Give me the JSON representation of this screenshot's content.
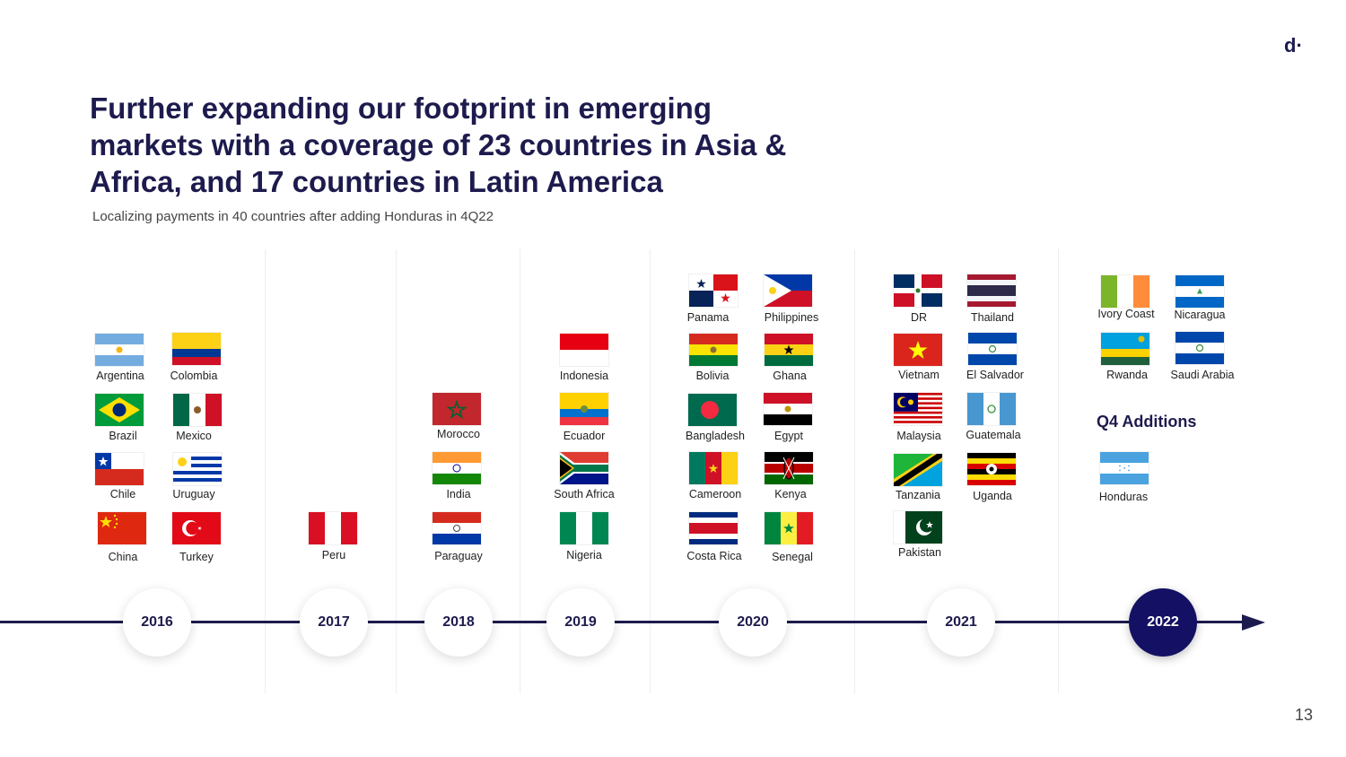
{
  "header": {
    "logo_text": "d·",
    "title": "Further expanding our footprint in emerging markets with a coverage of 23 countries in Asia & Africa, and 17 countries in Latin America",
    "subtitle": "Localizing payments in 40 countries after adding Honduras in 4Q22",
    "page_number": "13"
  },
  "timeline": {
    "years": [
      "2016",
      "2017",
      "2018",
      "2019",
      "2020",
      "2021",
      "2022"
    ],
    "highlighted_year": "2022",
    "q4_additions_label": "Q4 Additions"
  },
  "countries": {
    "argentina": "Argentina",
    "colombia": "Colombia",
    "brazil": "Brazil",
    "mexico": "Mexico",
    "chile": "Chile",
    "uruguay": "Uruguay",
    "china": "China",
    "turkey": "Turkey",
    "peru": "Peru",
    "morocco": "Morocco",
    "india": "India",
    "paraguay": "Paraguay",
    "indonesia": "Indonesia",
    "ecuador": "Ecuador",
    "south_africa": "South Africa",
    "nigeria": "Nigeria",
    "panama": "Panama",
    "philippines": "Philippines",
    "bolivia": "Bolivia",
    "ghana": "Ghana",
    "bangladesh": "Bangladesh",
    "egypt": "Egypt",
    "cameroon": "Cameroon",
    "kenya": "Kenya",
    "costa_rica": "Costa Rica",
    "senegal": "Senegal",
    "dr": "DR",
    "thailand": "Thailand",
    "vietnam": "Vietnam",
    "el_salvador": "El Salvador",
    "malaysia": "Malaysia",
    "guatemala": "Guatemala",
    "tanzania": "Tanzania",
    "uganda": "Uganda",
    "pakistan": "Pakistan",
    "ivory_coast": "Ivory Coast",
    "nicaragua": "Nicaragua",
    "rwanda": "Rwanda",
    "saudi_arabia": "Saudi Arabia",
    "honduras": "Honduras"
  },
  "colors": {
    "brand_navy": "#1d1b4d",
    "active_year_fill": "#141063"
  }
}
